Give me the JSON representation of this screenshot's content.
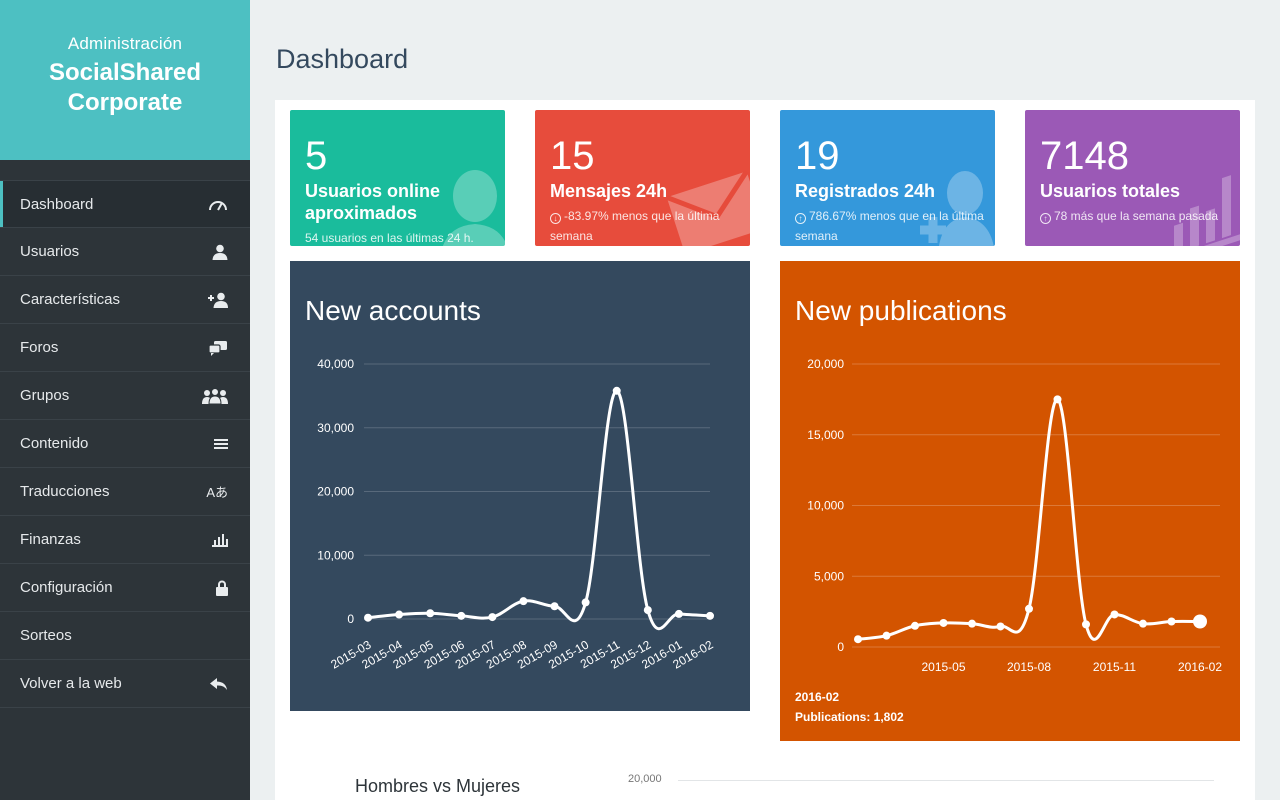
{
  "brand": {
    "subtitle": "Administración",
    "name_line1": "SocialShared",
    "name_line2": "Corporate",
    "color": "#4dc0c2"
  },
  "nav": [
    {
      "label": "Dashboard",
      "icon": "speedometer-icon",
      "active": true
    },
    {
      "label": "Usuarios",
      "icon": "user-icon"
    },
    {
      "label": "Características",
      "icon": "user-plus-icon"
    },
    {
      "label": "Foros",
      "icon": "comments-icon"
    },
    {
      "label": "Grupos",
      "icon": "group-icon"
    },
    {
      "label": "Contenido",
      "icon": "menu-icon"
    },
    {
      "label": "Traducciones",
      "icon": "translate-icon"
    },
    {
      "label": "Finanzas",
      "icon": "bar-chart-icon"
    },
    {
      "label": "Configuración",
      "icon": "lock-icon"
    },
    {
      "label": "Sorteos",
      "icon": ""
    },
    {
      "label": "Volver a la web",
      "icon": "reply-icon"
    }
  ],
  "page": {
    "title": "Dashboard"
  },
  "stats": [
    {
      "value": "5",
      "title": "Usuarios online aproximados",
      "footer": "54 usuarios en las últimas 24 h.",
      "color": "#1abc9c",
      "icon": "user-silhouette-icon"
    },
    {
      "value": "15",
      "title": "Mensajes 24h",
      "footer": "-83.97% menos que la última semana",
      "color": "#e74c3c",
      "icon": "envelope-icon",
      "trend_icon": "arrow-down-circle-icon"
    },
    {
      "value": "19",
      "title": "Registrados 24h",
      "footer": "786.67% menos que en la última semana",
      "color": "#3498db",
      "icon": "user-add-silhouette-icon",
      "trend_icon": "arrow-up-circle-icon"
    },
    {
      "value": "7148",
      "title": "Usuarios totales",
      "footer": "78 más que la semana pasada",
      "color": "#9b59b6",
      "icon": "bar-chart-icon",
      "trend_icon": "arrow-up-circle-icon"
    }
  ],
  "accounts_card": {
    "title": "New accounts",
    "color": "#34495e"
  },
  "publications_card": {
    "title": "New publications",
    "color": "#d35400",
    "tooltip_x": "2016-02",
    "tooltip_value": "Publications: 1,802"
  },
  "bottom": {
    "title": "Hombres vs Mujeres",
    "axis_tick": "20,000"
  },
  "chart_data": [
    {
      "type": "line",
      "title": "New accounts",
      "x": [
        "2015-03",
        "2015-04",
        "2015-05",
        "2015-06",
        "2015-07",
        "2015-08",
        "2015-09",
        "2015-10",
        "2015-11",
        "2015-12",
        "2016-01",
        "2016-02"
      ],
      "series": [
        {
          "values": [
            200,
            700,
            900,
            500,
            300,
            2800,
            2000,
            2600,
            35800,
            1400,
            800,
            500
          ]
        }
      ],
      "ylim": [
        0,
        40000
      ],
      "yticks": [
        "0",
        "10,000",
        "20,000",
        "30,000",
        "40,000"
      ],
      "grid": true
    },
    {
      "type": "line",
      "title": "New publications",
      "x": [
        "2015-02",
        "2015-03",
        "2015-04",
        "2015-05",
        "2015-06",
        "2015-07",
        "2015-08",
        "2015-09",
        "2015-10",
        "2015-11",
        "2015-12",
        "2016-01",
        "2016-02"
      ],
      "xticks": [
        "2015-05",
        "2015-08",
        "2015-11",
        "2016-02"
      ],
      "series": [
        {
          "name": "Publications",
          "values": [
            550,
            800,
            1500,
            1700,
            1650,
            1450,
            2700,
            17500,
            1600,
            2300,
            1650,
            1802,
            1802
          ]
        }
      ],
      "ylim": [
        0,
        20000
      ],
      "yticks": [
        "0",
        "5,000",
        "10,000",
        "15,000",
        "20,000"
      ],
      "grid": true
    }
  ]
}
